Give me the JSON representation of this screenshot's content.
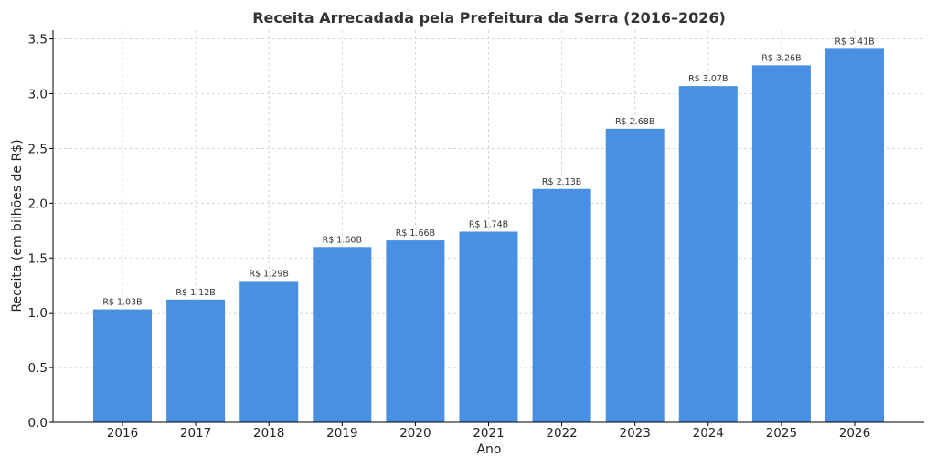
{
  "chart_data": {
    "type": "bar",
    "title": "Receita Arrecadada pela Prefeitura da Serra (2016–2026)",
    "xlabel": "Ano",
    "ylabel": "Receita (em bilhões de R$)",
    "categories": [
      "2016",
      "2017",
      "2018",
      "2019",
      "2020",
      "2021",
      "2022",
      "2023",
      "2024",
      "2025",
      "2026"
    ],
    "values": [
      1.03,
      1.12,
      1.29,
      1.6,
      1.66,
      1.74,
      2.13,
      2.68,
      3.07,
      3.26,
      3.41
    ],
    "data_labels": [
      "R$ 1.03B",
      "R$ 1.12B",
      "R$ 1.29B",
      "R$ 1.60B",
      "R$ 1.66B",
      "R$ 1.74B",
      "R$ 2.13B",
      "R$ 2.68B",
      "R$ 3.07B",
      "R$ 3.26B",
      "R$ 3.41B"
    ],
    "ylim": [
      0,
      3.58
    ],
    "yticks": [
      0.0,
      0.5,
      1.0,
      1.5,
      2.0,
      2.5,
      3.0,
      3.5
    ],
    "ytick_labels": [
      "0.0",
      "0.5",
      "1.0",
      "1.5",
      "2.0",
      "2.5",
      "3.0",
      "3.5"
    ],
    "grid": true,
    "bar_color": "#4a90e2"
  }
}
